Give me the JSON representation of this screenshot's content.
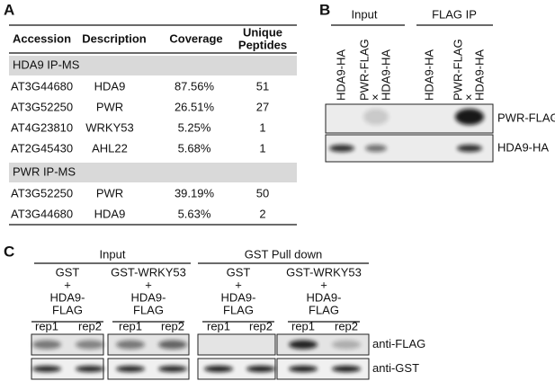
{
  "panel_a": {
    "label": "A",
    "columns": [
      "Accession",
      "Description",
      "Coverage",
      [
        "Unique",
        "Peptides"
      ]
    ],
    "sections": [
      {
        "title": "HDA9 IP-MS",
        "rows": [
          [
            "AT3G44680",
            "HDA9",
            "87.56%",
            "51"
          ],
          [
            "AT3G52250",
            "PWR",
            "26.51%",
            "27"
          ],
          [
            "AT4G23810",
            "WRKY53",
            "5.25%",
            "1"
          ],
          [
            "AT2G45430",
            "AHL22",
            "5.68%",
            "1"
          ]
        ]
      },
      {
        "title": "PWR IP-MS",
        "rows": [
          [
            "AT3G52250",
            "PWR",
            "39.19%",
            "50"
          ],
          [
            "AT3G44680",
            "HDA9",
            "5.63%",
            "2"
          ]
        ]
      }
    ]
  },
  "panel_b": {
    "label": "B",
    "groups": [
      "Input",
      "FLAG IP"
    ],
    "lanes": [
      [
        "HDA9-HA"
      ],
      [
        "PWR-FLAG",
        "×",
        "HDA9-HA"
      ],
      [
        "HDA9-HA"
      ],
      [
        "PWR-FLAG",
        "×",
        "HDA9-HA"
      ]
    ],
    "blots": [
      "PWR-FLAG",
      "HDA9-HA"
    ]
  },
  "panel_c": {
    "label": "C",
    "groups": [
      "Input",
      "GST Pull down"
    ],
    "samples": [
      [
        "GST",
        "+",
        "HDA9-",
        "FLAG"
      ],
      [
        "GST-WRKY53",
        "+",
        "HDA9-",
        "FLAG"
      ],
      [
        "GST",
        "+",
        "HDA9-",
        "FLAG"
      ],
      [
        "GST-WRKY53",
        "+",
        "HDA9-",
        "FLAG"
      ]
    ],
    "reps": [
      "rep1",
      "rep2",
      "rep1",
      "rep2",
      "rep1",
      "rep2",
      "rep1",
      "rep2"
    ],
    "blots": [
      "anti-FLAG",
      "anti-GST"
    ]
  }
}
